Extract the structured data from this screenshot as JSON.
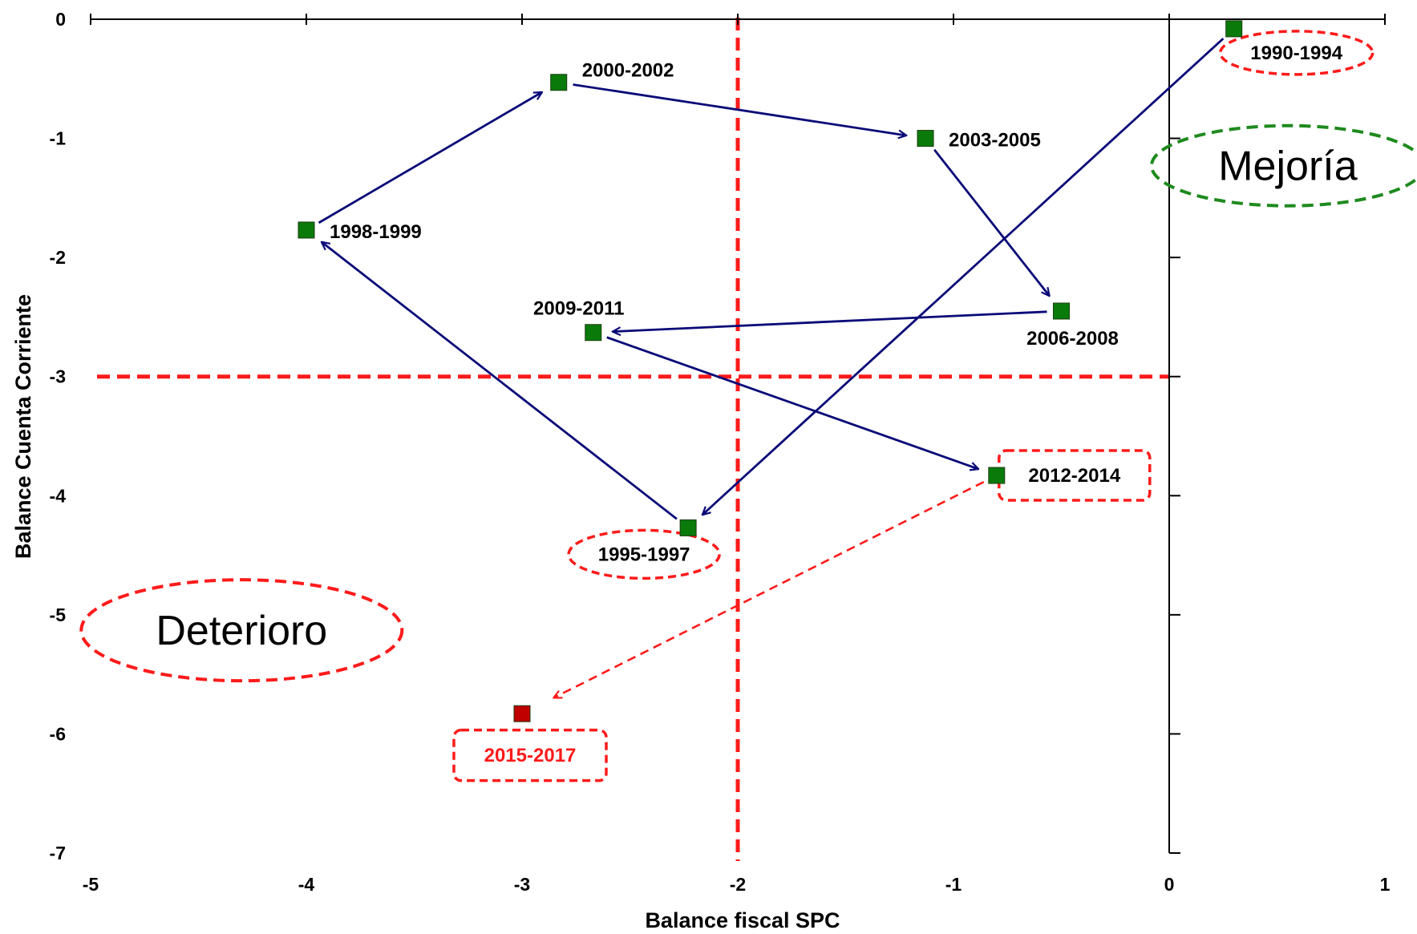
{
  "chart_data": {
    "type": "scatter",
    "title": "",
    "xlabel": "Balance fiscal SPC",
    "ylabel": "Balance Cuenta Corriente",
    "xlim": [
      -5,
      1
    ],
    "ylim": [
      -7,
      0
    ],
    "x_ticks": [
      -5,
      -4,
      -3,
      -2,
      -1,
      0,
      1
    ],
    "y_ticks": [
      0,
      -1,
      -2,
      -3,
      -4,
      -5,
      -6,
      -7
    ],
    "x_tick_labels": [
      "-5",
      "-4",
      "-3",
      "-2",
      "-1",
      "0",
      "1"
    ],
    "y_tick_labels": [
      "0",
      "-1",
      "-2",
      "-3",
      "-4",
      "-5",
      "-6",
      "-7"
    ],
    "grid": false,
    "points": [
      {
        "label": "1990-1994",
        "x": 0.3,
        "y": -0.08,
        "color": "#0a7a0a"
      },
      {
        "label": "1995-1997",
        "x": -2.23,
        "y": -4.27,
        "color": "#0a7a0a"
      },
      {
        "label": "1998-1999",
        "x": -4.0,
        "y": -1.77,
        "color": "#0a7a0a"
      },
      {
        "label": "2000-2002",
        "x": -2.83,
        "y": -0.53,
        "color": "#0a7a0a"
      },
      {
        "label": "2003-2005",
        "x": -1.13,
        "y": -1.0,
        "color": "#0a7a0a"
      },
      {
        "label": "2006-2008",
        "x": -0.5,
        "y": -2.45,
        "color": "#0a7a0a"
      },
      {
        "label": "2009-2011",
        "x": -2.67,
        "y": -2.63,
        "color": "#0a7a0a"
      },
      {
        "label": "2012-2014",
        "x": -0.8,
        "y": -3.83,
        "color": "#0a7a0a"
      },
      {
        "label": "2015-2017",
        "x": -3.0,
        "y": -5.83,
        "color": "#c00000"
      }
    ],
    "trajectory_order": [
      "1990-1994",
      "1995-1997",
      "1998-1999",
      "2000-2002",
      "2003-2005",
      "2006-2008",
      "2009-2011",
      "2012-2014"
    ],
    "projection_arrow": {
      "from": "2012-2014",
      "to": "2015-2017",
      "style": "dashed",
      "color": "#ff1a1a"
    },
    "reference_lines": [
      {
        "orientation": "vertical",
        "x": -2,
        "color": "#ff1a1a",
        "style": "dashed"
      },
      {
        "orientation": "horizontal",
        "y": -3,
        "color": "#ff1a1a",
        "style": "dashed"
      }
    ],
    "highlighted_labels": [
      "1990-1994",
      "1995-1997",
      "2012-2014",
      "2015-2017"
    ],
    "annotations": [
      {
        "text": "Mejoría",
        "x": 0.55,
        "y": -1.23,
        "outline_color": "#1e8a1e"
      },
      {
        "text": "Deterioro",
        "x": -4.3,
        "y": -5.13,
        "outline_color": "#ff1a1a"
      }
    ],
    "colors": {
      "marker": "#0a7a0a",
      "marker_projected": "#c00000",
      "arrow": "#0a0a78",
      "reference": "#ff1a1a",
      "axis": "#000000"
    }
  }
}
